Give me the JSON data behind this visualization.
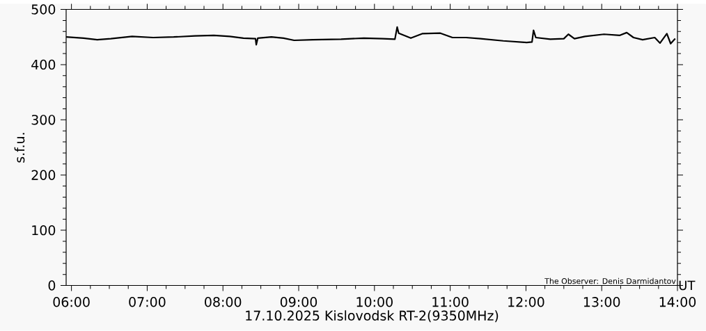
{
  "chart_data": {
    "type": "line",
    "xlabel": "17.10.2025 Kislovodsk RT-2(9350MHz)",
    "ylabel": "s.f.u.",
    "annotations": [
      "The Observer: Denis Darmidantov",
      "UT"
    ],
    "color": "#000000",
    "marker": "none",
    "line_style": "solid",
    "x": [
      5.93,
      6.16,
      6.34,
      6.52,
      6.8,
      7.08,
      7.35,
      7.63,
      7.88,
      8.09,
      8.27,
      8.43,
      8.44,
      8.46,
      8.64,
      8.8,
      8.94,
      9.19,
      9.56,
      9.86,
      10.11,
      10.27,
      10.3,
      10.32,
      10.48,
      10.63,
      10.87,
      11.03,
      11.21,
      11.4,
      11.7,
      12.01,
      12.08,
      12.1,
      12.13,
      12.32,
      12.5,
      12.56,
      12.64,
      12.78,
      13.03,
      13.24,
      13.33,
      13.42,
      13.54,
      13.7,
      13.77,
      13.86,
      13.91,
      13.97
    ],
    "values": [
      450,
      448,
      445,
      447,
      451,
      449,
      450,
      452,
      453,
      451,
      448,
      447,
      436,
      448,
      450,
      448,
      444,
      445,
      446,
      448,
      447,
      446,
      468,
      457,
      448,
      456,
      457,
      449,
      449,
      447,
      443,
      440,
      441,
      462,
      449,
      446,
      447,
      455,
      447,
      451,
      455,
      453,
      458,
      449,
      445,
      449,
      439,
      456,
      438,
      447
    ],
    "xlim": [
      5.93,
      14
    ],
    "ylim": [
      0,
      500
    ],
    "xticks": [
      {
        "value": 6,
        "label": "06:00"
      },
      {
        "value": 7,
        "label": "07:00"
      },
      {
        "value": 8,
        "label": "08:00"
      },
      {
        "value": 9,
        "label": "09:00"
      },
      {
        "value": 10,
        "label": "10:00"
      },
      {
        "value": 11,
        "label": "11:00"
      },
      {
        "value": 12,
        "label": "12:00"
      },
      {
        "value": 13,
        "label": "13:00"
      },
      {
        "value": 14,
        "label": "14:00"
      }
    ],
    "yticks": [
      0,
      100,
      200,
      300,
      400,
      500
    ]
  }
}
